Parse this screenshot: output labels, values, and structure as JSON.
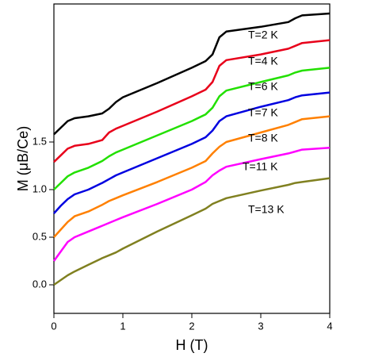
{
  "chart_data": {
    "type": "line",
    "xlabel": "H (T)",
    "ylabel": "M (μB/Ce)",
    "x": [
      0,
      0.1,
      0.2,
      0.3,
      0.5,
      0.7,
      0.8,
      0.9,
      1.0,
      1.5,
      2.0,
      2.2,
      2.3,
      2.4,
      2.5,
      3.0,
      3.4,
      3.5,
      3.6,
      4.0
    ],
    "series": [
      {
        "name": "T=2 K",
        "color": "#000000",
        "values": [
          1.58,
          1.65,
          1.72,
          1.75,
          1.77,
          1.8,
          1.85,
          1.92,
          1.97,
          2.12,
          2.28,
          2.35,
          2.42,
          2.6,
          2.66,
          2.71,
          2.76,
          2.8,
          2.83,
          2.85
        ]
      },
      {
        "name": "T=4 K",
        "color": "#e8001a",
        "values": [
          1.29,
          1.36,
          1.43,
          1.46,
          1.48,
          1.52,
          1.6,
          1.64,
          1.67,
          1.82,
          1.98,
          2.05,
          2.13,
          2.3,
          2.36,
          2.42,
          2.48,
          2.51,
          2.54,
          2.57
        ]
      },
      {
        "name": "T=6 K",
        "color": "#22e000",
        "values": [
          1.0,
          1.07,
          1.14,
          1.18,
          1.23,
          1.3,
          1.35,
          1.39,
          1.42,
          1.57,
          1.72,
          1.79,
          1.86,
          1.98,
          2.04,
          2.13,
          2.2,
          2.23,
          2.25,
          2.28
        ]
      },
      {
        "name": "T=7 K",
        "color": "#0000e0",
        "values": [
          0.75,
          0.83,
          0.9,
          0.95,
          1.0,
          1.07,
          1.11,
          1.15,
          1.18,
          1.33,
          1.48,
          1.55,
          1.62,
          1.72,
          1.77,
          1.87,
          1.94,
          1.97,
          1.99,
          2.02
        ]
      },
      {
        "name": "T=8 K",
        "color": "#ff8000",
        "values": [
          0.5,
          0.58,
          0.66,
          0.72,
          0.77,
          0.84,
          0.88,
          0.91,
          0.94,
          1.08,
          1.23,
          1.3,
          1.38,
          1.45,
          1.5,
          1.6,
          1.68,
          1.71,
          1.74,
          1.77
        ]
      },
      {
        "name": "T=11 K",
        "color": "#ff00ff",
        "values": [
          0.25,
          0.35,
          0.45,
          0.5,
          0.56,
          0.62,
          0.65,
          0.68,
          0.71,
          0.85,
          1.0,
          1.08,
          1.15,
          1.2,
          1.24,
          1.32,
          1.38,
          1.4,
          1.42,
          1.44
        ]
      },
      {
        "name": "T=13 K",
        "color": "#808020",
        "values": [
          0.0,
          0.05,
          0.1,
          0.14,
          0.21,
          0.28,
          0.31,
          0.34,
          0.38,
          0.56,
          0.73,
          0.8,
          0.85,
          0.88,
          0.91,
          0.99,
          1.05,
          1.07,
          1.08,
          1.12
        ]
      }
    ],
    "xlim": [
      0,
      4
    ],
    "ylim": [
      -0.3,
      2.95
    ],
    "xticks": [
      0,
      1,
      2,
      3,
      4
    ],
    "yticks": [
      {
        "value": 0,
        "label": "0.0"
      },
      0.5,
      {
        "value": 1,
        "label": "1.0"
      },
      1.5
    ]
  }
}
